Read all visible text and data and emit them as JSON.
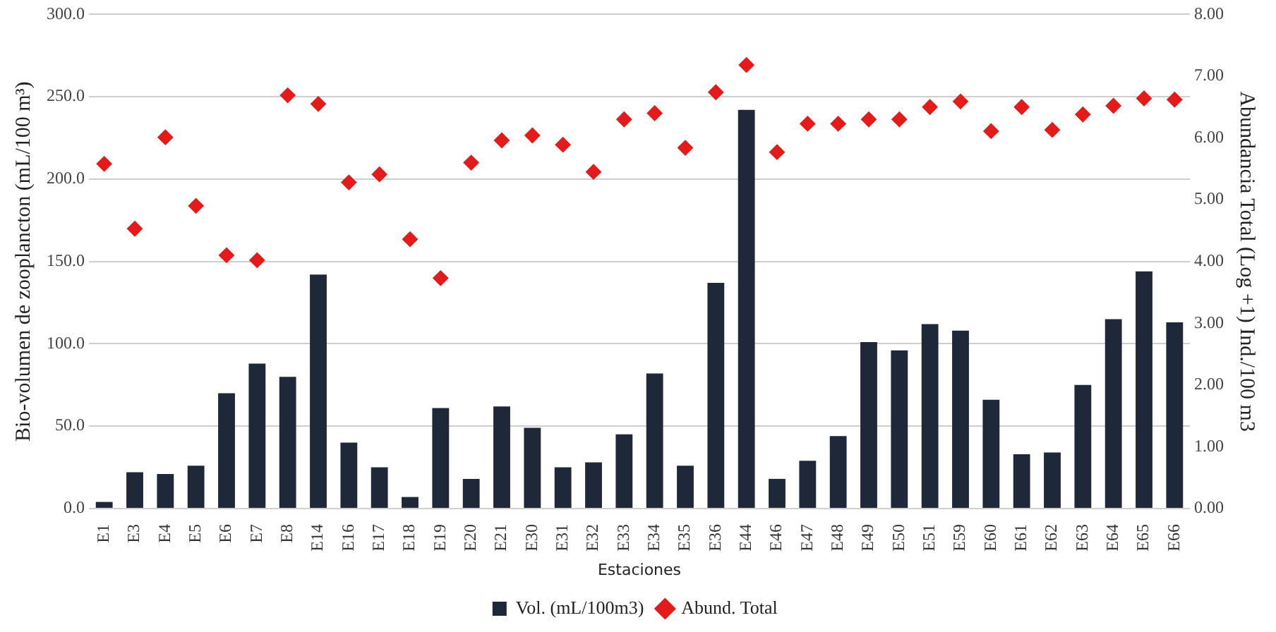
{
  "chart_data": {
    "type": "bar",
    "xlabel": "Estaciones",
    "ylabel": "Bio-volumen de zooplancton (mL/100 m³)",
    "y2label": "Abundancia Total (Log +1) Ind./100 m3",
    "categories": [
      "E1",
      "E3",
      "E4",
      "E5",
      "E6",
      "E7",
      "E8",
      "E14",
      "E16",
      "E17",
      "E18",
      "E19",
      "E20",
      "E21",
      "E30",
      "E31",
      "E32",
      "E33",
      "E34",
      "E35",
      "E36",
      "E44",
      "E46",
      "E47",
      "E48",
      "E49",
      "E50",
      "E51",
      "E59",
      "E60",
      "E61",
      "E62",
      "E63",
      "E64",
      "E65",
      "E66"
    ],
    "series": [
      {
        "name": "Vol. (mL/100m3)",
        "color": "#1f2838",
        "values": [
          4,
          22,
          21,
          26,
          70,
          88,
          80,
          142,
          40,
          25,
          7,
          61,
          18,
          62,
          49,
          25,
          28,
          45,
          82,
          26,
          137,
          242,
          18,
          29,
          44,
          101,
          96,
          112,
          108,
          66,
          33,
          34,
          75,
          115,
          144,
          113
        ]
      },
      {
        "name": "Abund. Total",
        "type": "scatter",
        "axis": "y2",
        "marker": "diamond",
        "color": "#e31b1b",
        "values": [
          5.58,
          4.53,
          6.01,
          4.9,
          4.1,
          4.02,
          6.69,
          6.55,
          5.28,
          5.41,
          4.36,
          3.73,
          5.6,
          5.96,
          6.04,
          5.89,
          5.45,
          6.3,
          6.4,
          5.84,
          6.74,
          7.18,
          5.77,
          6.23,
          6.23,
          6.3,
          6.3,
          6.5,
          6.59,
          6.11,
          6.5,
          6.13,
          6.38,
          6.52,
          6.64,
          6.62
        ]
      }
    ],
    "ylim": [
      0,
      300
    ],
    "yticks": [
      {
        "value": 0,
        "label": "0.0"
      },
      {
        "value": 50,
        "label": "50.0"
      },
      {
        "value": 100,
        "label": "100.0"
      },
      {
        "value": 150,
        "label": "150.0"
      },
      {
        "value": 200,
        "label": "200.0"
      },
      {
        "value": 250,
        "label": "250.0"
      },
      {
        "value": 300,
        "label": "300.0"
      }
    ],
    "y2lim": [
      0,
      8
    ],
    "y2ticks": [
      {
        "value": 0,
        "label": "0.00"
      },
      {
        "value": 1,
        "label": "1.00"
      },
      {
        "value": 2,
        "label": "2.00"
      },
      {
        "value": 3,
        "label": "3.00"
      },
      {
        "value": 4,
        "label": "4.00"
      },
      {
        "value": 5,
        "label": "5.00"
      },
      {
        "value": 6,
        "label": "6.00"
      },
      {
        "value": 7,
        "label": "7.00"
      },
      {
        "value": 8,
        "label": "8.00"
      }
    ],
    "grid": "y",
    "legend": "bottom"
  }
}
